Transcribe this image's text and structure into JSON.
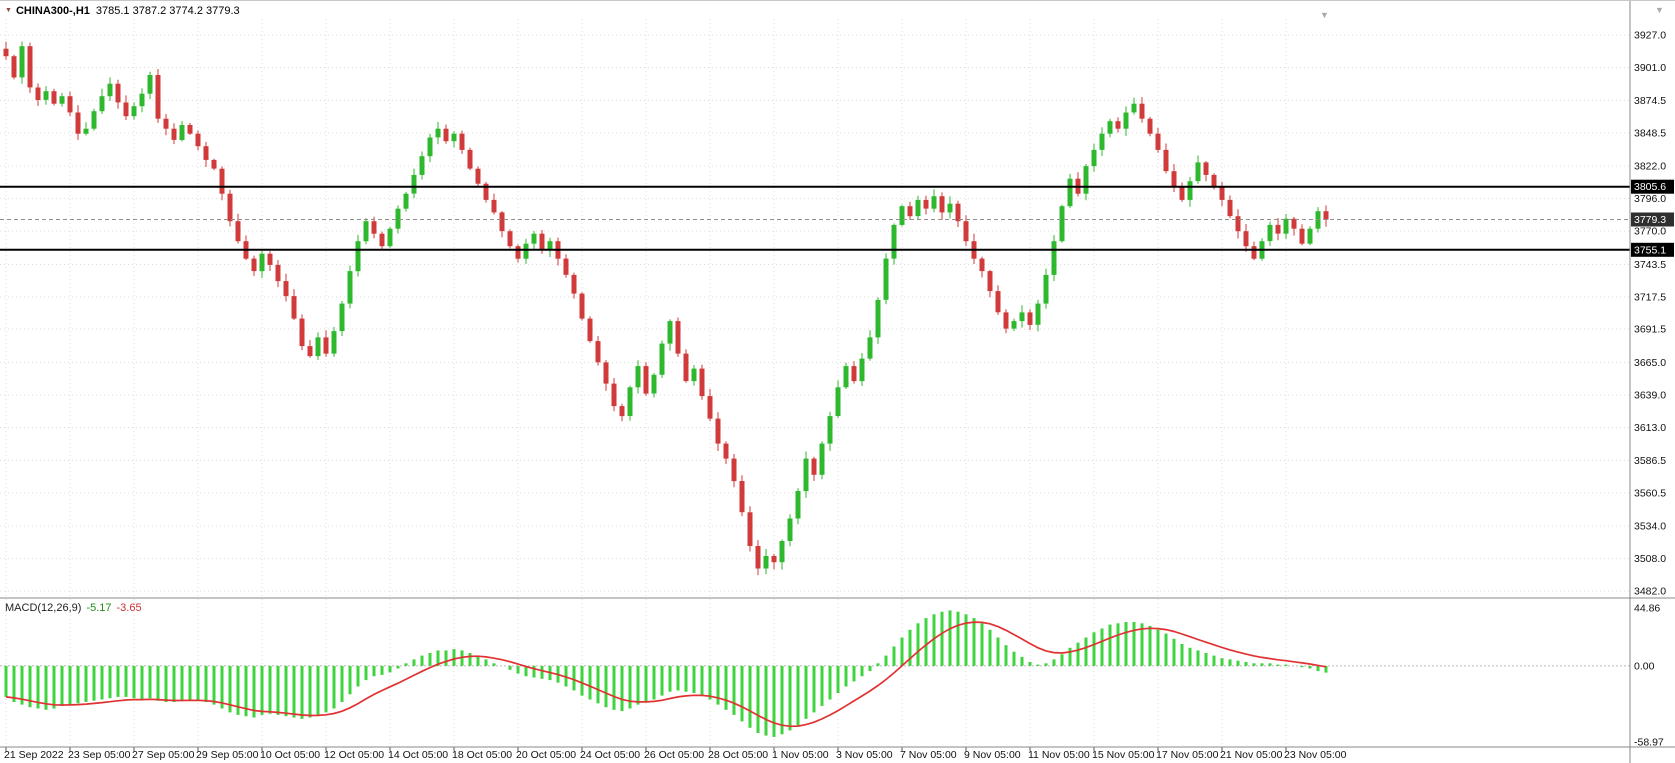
{
  "colors": {
    "background": "#ffffff",
    "grid": "#dcdcdc",
    "bull": "#2eb82e",
    "bear": "#d03a3a",
    "histogram": "#3fd33f",
    "signal_line": "#e03232",
    "sr_line": "#000000",
    "sr_tag_bg": "#000000",
    "price_tag_bg": "#2f2f2f",
    "axis_text": "#111111",
    "macd_value_color": "#1f8f1f",
    "signal_value_color": "#d03030",
    "symbol_marker": "#994444",
    "shift_marker": "#a9a9a9",
    "divider": "#888888"
  },
  "icons": {
    "symbol_marker": "▼",
    "shift_marker": "▼",
    "corner_marker": "▼"
  },
  "quote_bar": {
    "symbol": "CHINA300-,H1",
    "ohlc_text": "3785.1 3787.2 3774.2 3779.3"
  },
  "chart_data": {
    "type": "candlestick",
    "title": "CHINA300-,H1",
    "timeframe": "H1",
    "current_bar": {
      "open": 3785.1,
      "high": 3787.2,
      "low": 3774.2,
      "close": 3779.3
    },
    "y_axis": {
      "min": 3482,
      "max": 3927,
      "tick_labels": [
        "3927.0",
        "3901.0",
        "3874.5",
        "3848.5",
        "3822.0",
        "3796.0",
        "3770.0",
        "3743.5",
        "3717.5",
        "3691.5",
        "3665.0",
        "3639.0",
        "3613.0",
        "3586.5",
        "3560.5",
        "3534.0",
        "3508.0",
        "3482.0"
      ]
    },
    "price_lines": [
      {
        "value": 3805.6,
        "label": "3805.6"
      },
      {
        "value": 3755.1,
        "label": "3755.1"
      }
    ],
    "current_price": {
      "value": 3779.3,
      "label": "3779.3"
    },
    "x_ticks": [
      "21 Sep 2022",
      "23 Sep 05:00",
      "27 Sep 05:00",
      "29 Sep 05:00",
      "10 Oct 05:00",
      "12 Oct 05:00",
      "14 Oct 05:00",
      "18 Oct 05:00",
      "20 Oct 05:00",
      "24 Oct 05:00",
      "26 Oct 05:00",
      "28 Oct 05:00",
      "1 Nov 05:00",
      "3 Nov 05:00",
      "7 Nov 05:00",
      "9 Nov 05:00",
      "11 Nov 05:00",
      "15 Nov 05:00",
      "17 Nov 05:00",
      "21 Nov 05:00",
      "23 Nov 05:00"
    ],
    "x_tick_every": 8,
    "closes": [
      3910,
      3893,
      3918,
      3885,
      3875,
      3882,
      3872,
      3878,
      3865,
      3848,
      3852,
      3866,
      3878,
      3888,
      3873,
      3862,
      3870,
      3880,
      3895,
      3860,
      3852,
      3843,
      3855,
      3848,
      3838,
      3827,
      3820,
      3800,
      3778,
      3762,
      3748,
      3738,
      3752,
      3743,
      3730,
      3718,
      3700,
      3678,
      3670,
      3685,
      3672,
      3690,
      3712,
      3738,
      3762,
      3778,
      3768,
      3758,
      3772,
      3788,
      3800,
      3815,
      3830,
      3845,
      3852,
      3842,
      3848,
      3835,
      3820,
      3808,
      3795,
      3785,
      3770,
      3758,
      3748,
      3760,
      3768,
      3755,
      3762,
      3748,
      3735,
      3720,
      3700,
      3682,
      3665,
      3648,
      3630,
      3622,
      3645,
      3662,
      3640,
      3655,
      3680,
      3698,
      3672,
      3650,
      3660,
      3638,
      3620,
      3600,
      3588,
      3570,
      3545,
      3518,
      3500,
      3510,
      3505,
      3522,
      3540,
      3562,
      3588,
      3575,
      3600,
      3622,
      3645,
      3662,
      3650,
      3668,
      3685,
      3715,
      3748,
      3775,
      3790,
      3782,
      3795,
      3788,
      3798,
      3785,
      3792,
      3778,
      3762,
      3748,
      3738,
      3722,
      3705,
      3692,
      3698,
      3705,
      3695,
      3712,
      3735,
      3762,
      3790,
      3812,
      3800,
      3822,
      3835,
      3848,
      3858,
      3852,
      3865,
      3872,
      3860,
      3848,
      3835,
      3818,
      3805,
      3795,
      3810,
      3825,
      3815,
      3805,
      3795,
      3782,
      3770,
      3758,
      3748,
      3762,
      3775,
      3768,
      3780,
      3772,
      3760,
      3772,
      3786,
      3779.3
    ],
    "macd": {
      "caption": "MACD(12,26,9)",
      "macd_value": "-5.17",
      "signal_value": "-3.65",
      "tick_labels": [
        "44.86",
        "0.00",
        "-58.97"
      ],
      "values": [
        -24,
        -28,
        -30,
        -32,
        -33,
        -34,
        -33,
        -31,
        -30,
        -29,
        -28,
        -27,
        -26,
        -25,
        -24,
        -24,
        -25,
        -26,
        -25,
        -27,
        -28,
        -28,
        -27,
        -26,
        -27,
        -28,
        -30,
        -33,
        -36,
        -38,
        -39,
        -40,
        -38,
        -37,
        -38,
        -39,
        -40,
        -41,
        -40,
        -38,
        -36,
        -33,
        -28,
        -22,
        -16,
        -11,
        -8,
        -7,
        -5,
        -2,
        2,
        5,
        8,
        10,
        12,
        12,
        13,
        12,
        10,
        8,
        5,
        2,
        0,
        -3,
        -6,
        -8,
        -9,
        -10,
        -11,
        -13,
        -16,
        -19,
        -23,
        -26,
        -29,
        -32,
        -34,
        -35,
        -33,
        -30,
        -28,
        -26,
        -23,
        -20,
        -19,
        -20,
        -21,
        -23,
        -26,
        -30,
        -34,
        -38,
        -43,
        -48,
        -52,
        -54,
        -55,
        -53,
        -50,
        -46,
        -41,
        -36,
        -31,
        -26,
        -21,
        -16,
        -12,
        -8,
        -4,
        2,
        8,
        15,
        22,
        28,
        33,
        37,
        40,
        42,
        43,
        42,
        40,
        37,
        33,
        28,
        22,
        16,
        11,
        7,
        3,
        1,
        2,
        5,
        9,
        14,
        18,
        22,
        26,
        29,
        32,
        33,
        34,
        34,
        33,
        31,
        28,
        25,
        21,
        17,
        14,
        12,
        10,
        8,
        6,
        5,
        4,
        3,
        2,
        2,
        2,
        1,
        1,
        0,
        -1,
        -2,
        -4,
        -5.17
      ]
    }
  }
}
